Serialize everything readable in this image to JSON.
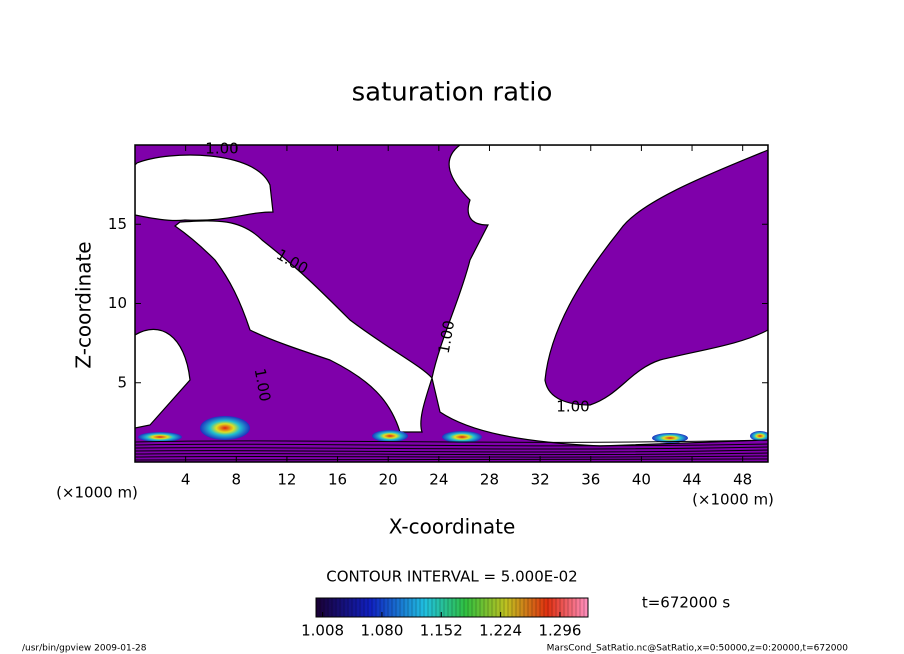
{
  "chart_data": {
    "type": "contour",
    "title": "saturation ratio",
    "x_label": "X-coordinate",
    "y_label": "Z-coordinate",
    "x_unit": "(×1000 m)",
    "y_unit": "(×1000 m)",
    "xlim": [
      0,
      50
    ],
    "xticks": [
      4,
      8,
      12,
      16,
      20,
      24,
      28,
      32,
      36,
      40,
      44,
      48
    ],
    "ylim": [
      0,
      20
    ],
    "yticks": [
      5,
      10,
      15
    ],
    "contour_level": {
      "value": 1,
      "label": "1.00"
    },
    "contour_interval_text": "CONTOUR INTERVAL = 5.000E-02",
    "fill_color": "#7f00aa",
    "colorbar_lim": [
      1.0,
      1.33
    ],
    "colorbar_ticks": [
      {
        "value": 1.008,
        "label": "1.008"
      },
      {
        "value": 1.08,
        "label": "1.080"
      },
      {
        "value": 1.152,
        "label": "1.152"
      },
      {
        "value": 1.224,
        "label": "1.224"
      },
      {
        "value": 1.296,
        "label": "1.296"
      }
    ],
    "time_text": "t=672000 s",
    "footer_left": "/usr/bin/gpview  2009-01-28",
    "footer_right": "MarsCond_SatRatio.nc@SatRatio,x=0:50000,z=0:20000,t=672000"
  }
}
